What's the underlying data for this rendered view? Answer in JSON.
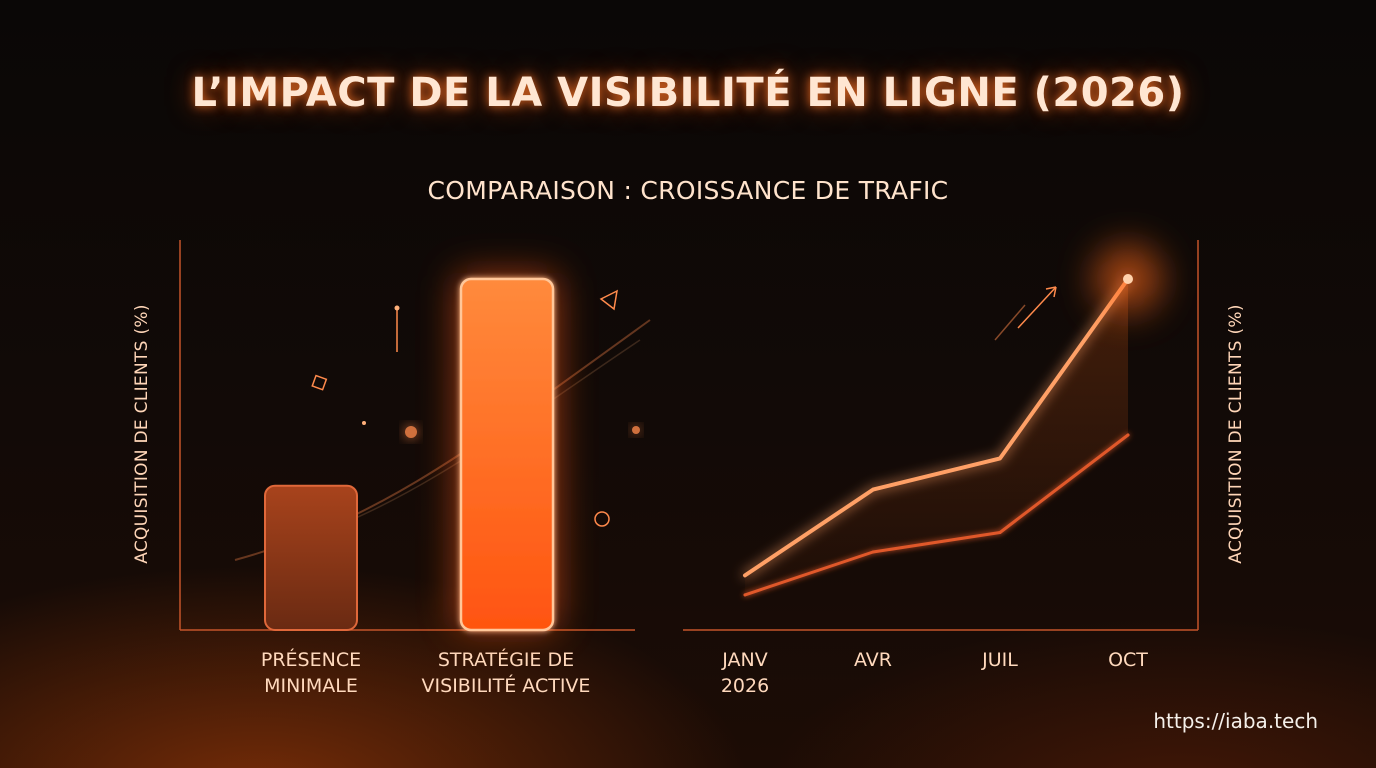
{
  "title": "L’IMPACT DE LA VISIBILITÉ EN LIGNE (2026)",
  "subtitle": "COMPARAISON : CROISSANCE DE TRAFIC",
  "footer_url": "https://iaba.tech",
  "colors": {
    "accent": "#ff6a1a",
    "accent_light": "#ffb07a",
    "axis": "#c4542a",
    "text": "#ffe3cc"
  },
  "chart_data": [
    {
      "type": "bar",
      "ylabel": "ACQUISITION DE CLIENTS (%)",
      "categories": [
        "PRÉSENCE\nMINIMALE",
        "STRATÉGIE DE\nVISIBILITÉ ACTIVE"
      ],
      "values": [
        37,
        90
      ],
      "ylim": [
        0,
        100
      ],
      "grid": false
    },
    {
      "type": "line",
      "ylabel": "ACQUISITION DE CLIENTS (%)",
      "x": [
        "JANV\n2026",
        "AVR",
        "JUIL",
        "OCT"
      ],
      "series": [
        {
          "values": [
            14,
            36,
            44,
            90
          ],
          "color": "#ffa066"
        },
        {
          "values": [
            9,
            20,
            25,
            50
          ],
          "color": "#e0582a"
        }
      ],
      "ylim": [
        0,
        100
      ],
      "grid": false
    }
  ]
}
